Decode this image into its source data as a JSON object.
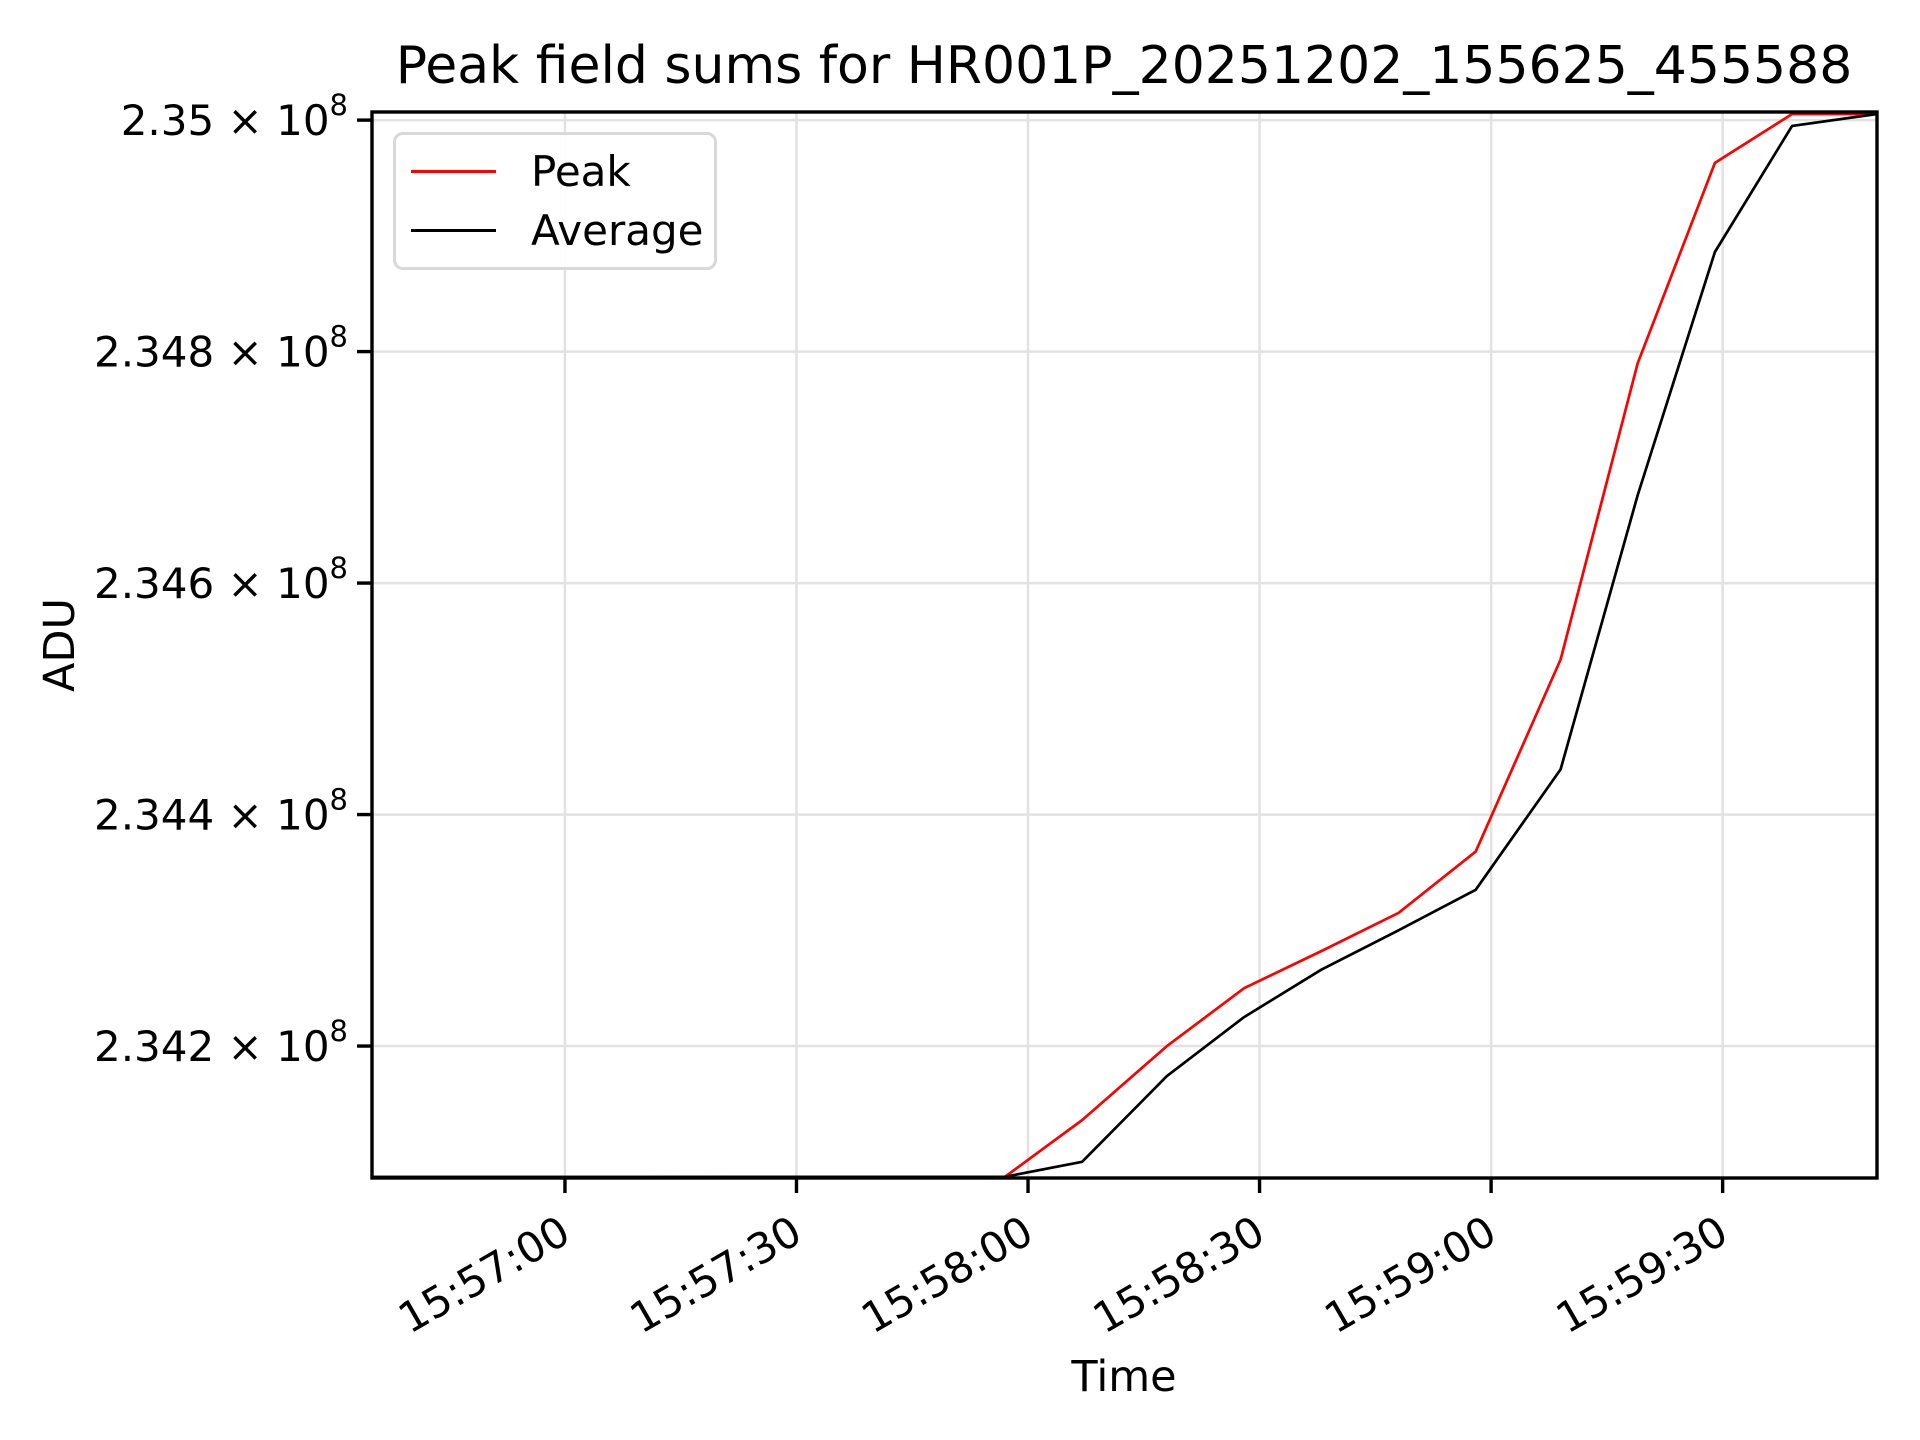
{
  "chart_data": {
    "type": "line",
    "title": "Peak field sums for HR001P_20251202_155625_455588",
    "xlabel": "Time",
    "ylabel": "ADU",
    "grid": true,
    "legend_position": "upper left",
    "xlim": [
      "15:56:35",
      "15:59:50"
    ],
    "ylim": [
      234086000,
      235007000
    ],
    "x_ticks": [
      "15:57:00",
      "15:57:30",
      "15:58:00",
      "15:58:30",
      "15:59:00",
      "15:59:30"
    ],
    "y_ticks": [
      {
        "value": 234200000,
        "base": "2.342 × 10",
        "exp": "8"
      },
      {
        "value": 234400000,
        "base": "2.344 × 10",
        "exp": "8"
      },
      {
        "value": 234600000,
        "base": "2.346 × 10",
        "exp": "8"
      },
      {
        "value": 234800000,
        "base": "2.348 × 10",
        "exp": "8"
      },
      {
        "value": 235000000,
        "base": "2.35 × 10",
        "exp": "8"
      }
    ],
    "series": [
      {
        "name": "Peak",
        "color": "#ff0000",
        "points": [
          [
            "15:56:35",
            234086000
          ],
          [
            "15:57:57",
            234087000
          ],
          [
            "15:58:07",
            234136000
          ],
          [
            "15:58:18",
            234200000
          ],
          [
            "15:58:28",
            234250000
          ],
          [
            "15:58:38",
            234282000
          ],
          [
            "15:58:48",
            234315000
          ],
          [
            "15:58:58",
            234368000
          ],
          [
            "15:59:09",
            234534000
          ],
          [
            "15:59:19",
            234790000
          ],
          [
            "15:59:29",
            234963000
          ],
          [
            "15:59:39",
            235007000
          ],
          [
            "15:59:50",
            235007000
          ]
        ]
      },
      {
        "name": "Average",
        "color": "#000000",
        "points": [
          [
            "15:56:35",
            234086000
          ],
          [
            "15:57:57",
            234087000
          ],
          [
            "15:58:07",
            234100000
          ],
          [
            "15:58:18",
            234174000
          ],
          [
            "15:58:28",
            234225000
          ],
          [
            "15:58:38",
            234266000
          ],
          [
            "15:58:48",
            234300000
          ],
          [
            "15:58:58",
            234335000
          ],
          [
            "15:59:09",
            234439000
          ],
          [
            "15:59:19",
            234676000
          ],
          [
            "15:59:29",
            234886000
          ],
          [
            "15:59:39",
            234995000
          ],
          [
            "15:59:50",
            235006000
          ]
        ]
      }
    ]
  },
  "colors": {
    "grid": "#e2e2e2",
    "spine": "#000000",
    "text": "#000000",
    "legend_border": "#d9d9d9"
  }
}
